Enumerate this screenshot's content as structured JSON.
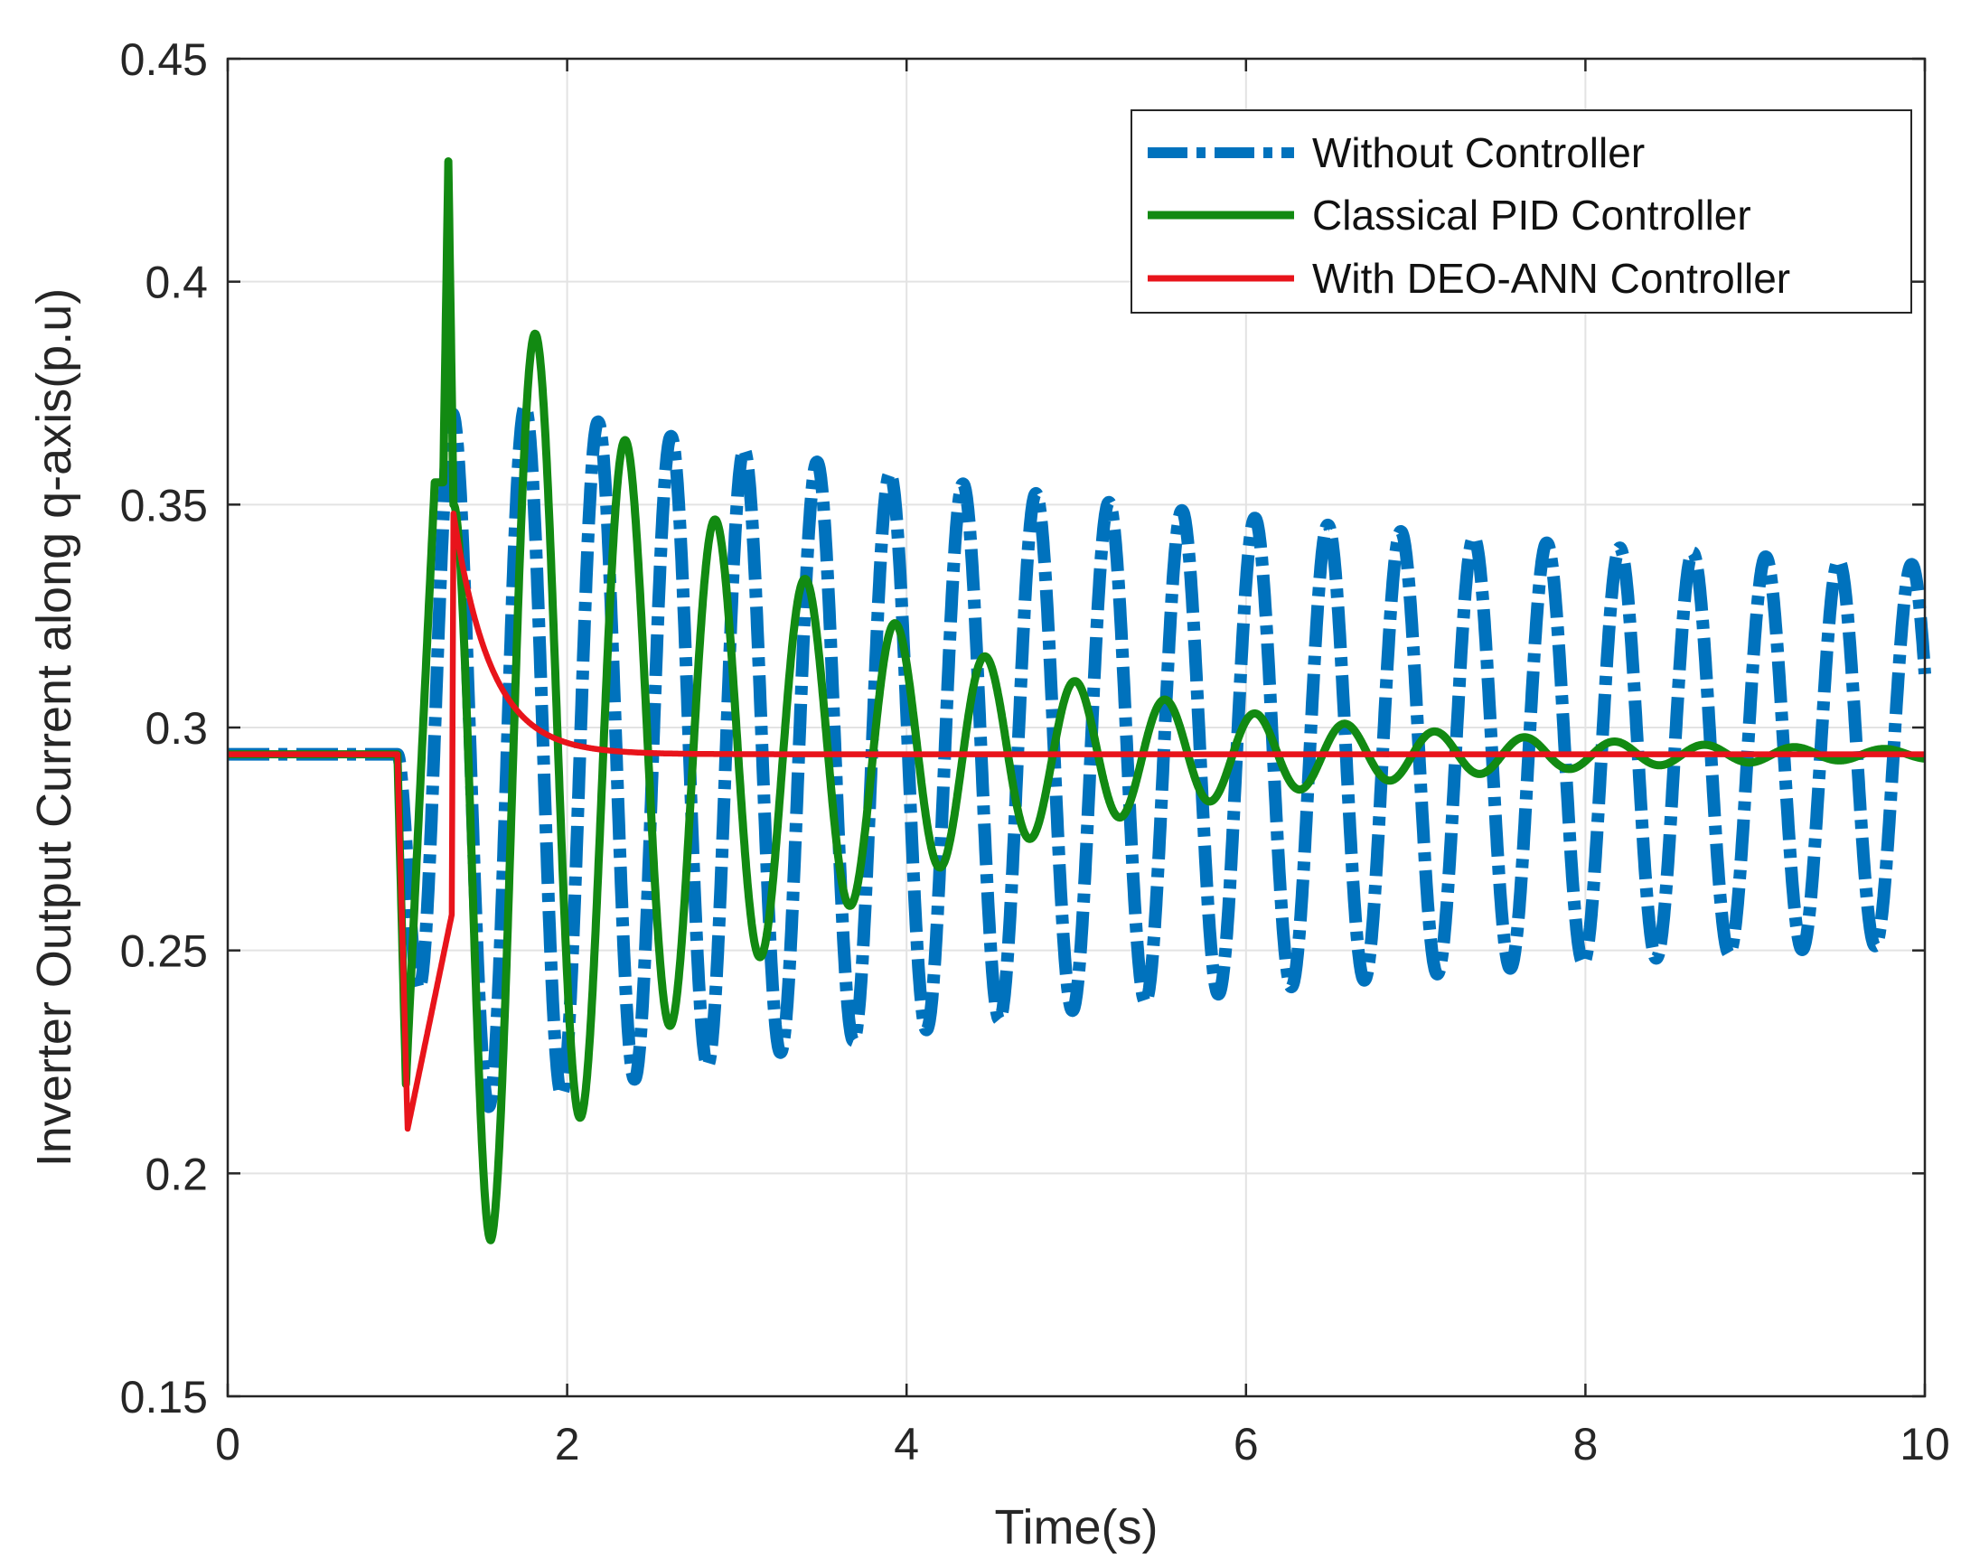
{
  "chart_data": {
    "type": "line",
    "title": "",
    "xlabel": "Time(s)",
    "ylabel": "Inverter Output Current along q-axis(p.u)",
    "xlim": [
      0,
      10
    ],
    "ylim": [
      0.15,
      0.45
    ],
    "xticks": [
      0,
      2,
      4,
      6,
      8,
      10
    ],
    "xtick_labels": [
      "0",
      "2",
      "4",
      "6",
      "8",
      "10"
    ],
    "yticks": [
      0.15,
      0.2,
      0.25,
      0.3,
      0.35,
      0.4,
      0.45
    ],
    "ytick_labels": [
      "0.15",
      "0.2",
      "0.25",
      "0.3",
      "0.35",
      "0.4",
      "0.45"
    ],
    "grid": true,
    "legend_position": "top-right",
    "series": [
      {
        "name": "Without Controller",
        "color": "#0072BD",
        "style": "dash-dot",
        "model": {
          "baseline": 0.294,
          "t0": 1.0,
          "pre_value": 0.294,
          "initial_amplitude": 0.085,
          "end_amplitude": 0.033,
          "period_s": 0.43
        }
      },
      {
        "name": "Classical PID Controller",
        "color": "#128A12",
        "style": "solid",
        "model": {
          "baseline": 0.294,
          "t0": 1.0,
          "spike_time": 1.3,
          "spike_peak": 0.427,
          "first_peak": 0.388,
          "first_trough": 0.185,
          "period_s": 0.53,
          "decay_per_s": 0.55
        }
      },
      {
        "name": "With DEO-ANN Controller",
        "color": "#E8141B",
        "style": "solid",
        "model": {
          "baseline": 0.294,
          "t0": 1.0,
          "dip_min": 0.21,
          "jump_time": 1.33,
          "peak": 0.348,
          "settle_time": 2.3
        }
      }
    ]
  }
}
